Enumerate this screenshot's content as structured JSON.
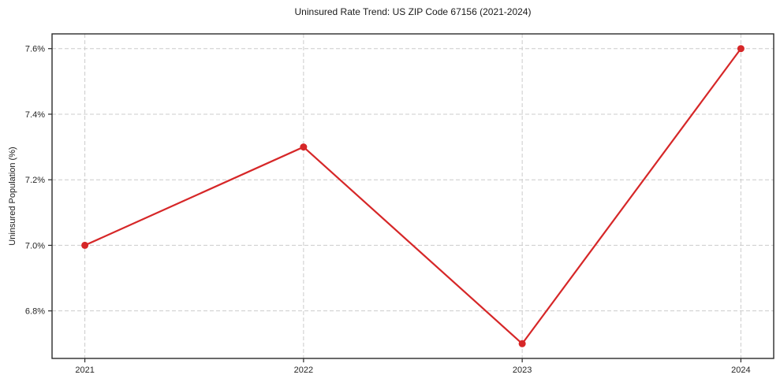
{
  "chart_data": {
    "type": "line",
    "title": "Uninsured Rate Trend: US ZIP Code 67156 (2021-2024)",
    "xlabel": "",
    "ylabel": "Uninsured Population (%)",
    "x": [
      2021,
      2022,
      2023,
      2024
    ],
    "xtick_labels": [
      "2021",
      "2022",
      "2023",
      "2024"
    ],
    "series": [
      {
        "name": "uninsured-rate",
        "values": [
          7.0,
          7.3,
          6.7,
          7.6
        ]
      }
    ],
    "yticks": [
      6.8,
      7.0,
      7.2,
      7.4,
      7.6
    ],
    "ytick_labels": [
      "6.8%",
      "7.0%",
      "7.2%",
      "7.4%",
      "7.6%"
    ],
    "xlim": [
      2020.85,
      2024.15
    ],
    "ylim": [
      6.655,
      7.645
    ],
    "grid": true,
    "grid_style": "dashed",
    "legend_position": "none",
    "colors": {
      "line": "#d62728",
      "marker": "#d62728",
      "grid": "#cccccc",
      "spine": "#2b2b2b",
      "tick_text": "#262626",
      "background": "#ffffff"
    }
  }
}
